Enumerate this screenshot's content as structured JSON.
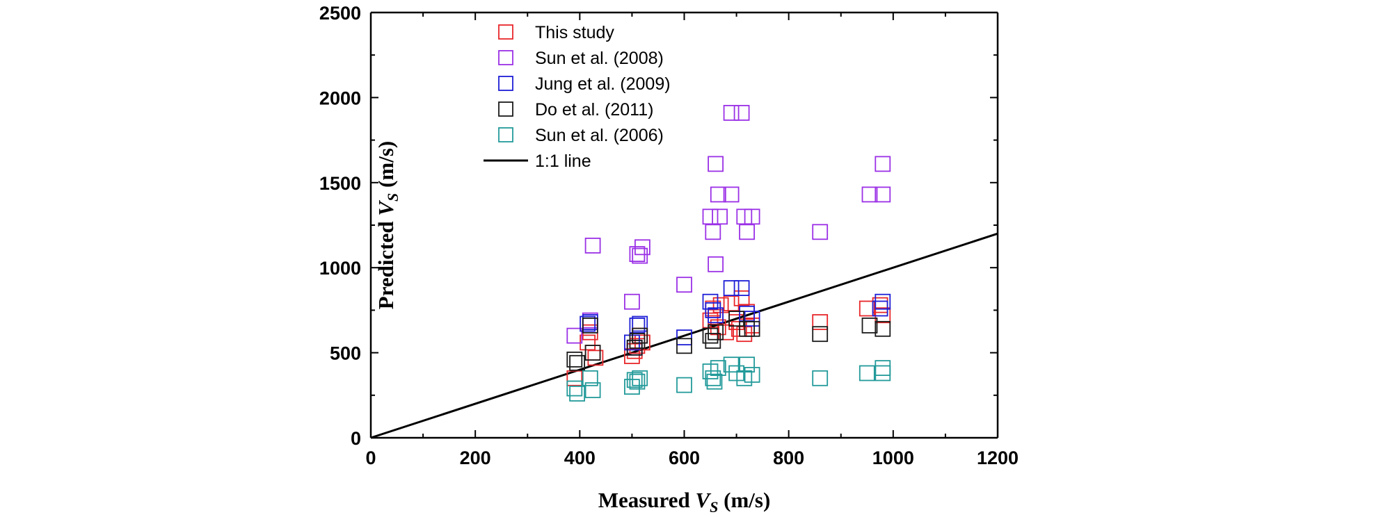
{
  "chart_data": {
    "type": "scatter",
    "xlabel": {
      "main": "Measured ",
      "var": "V",
      "sub": "S",
      "unit": " (m/s)"
    },
    "ylabel": {
      "main": "Predicted ",
      "var": "V",
      "sub": "S",
      "unit": " (m/s)"
    },
    "xlim": [
      0,
      1200
    ],
    "ylim": [
      0,
      2500
    ],
    "xticks": [
      "0",
      "200",
      "400",
      "600",
      "800",
      "1000",
      "1200"
    ],
    "yticks": [
      "0",
      "500",
      "1000",
      "1500",
      "2000",
      "2500"
    ],
    "grid": false,
    "legend_position": "top-left",
    "series": [
      {
        "name": "This study",
        "color": "#e8262a",
        "marker": "open-square",
        "points": [
          [
            390,
            350
          ],
          [
            415,
            560
          ],
          [
            420,
            620
          ],
          [
            425,
            500
          ],
          [
            430,
            470
          ],
          [
            500,
            480
          ],
          [
            505,
            510
          ],
          [
            510,
            540
          ],
          [
            515,
            600
          ],
          [
            520,
            560
          ],
          [
            650,
            690
          ],
          [
            655,
            760
          ],
          [
            660,
            710
          ],
          [
            665,
            650
          ],
          [
            670,
            780
          ],
          [
            680,
            620
          ],
          [
            690,
            790
          ],
          [
            700,
            680
          ],
          [
            705,
            640
          ],
          [
            710,
            820
          ],
          [
            715,
            610
          ],
          [
            720,
            740
          ],
          [
            730,
            660
          ],
          [
            860,
            680
          ],
          [
            950,
            760
          ],
          [
            975,
            780
          ],
          [
            980,
            720
          ]
        ]
      },
      {
        "name": "Sun et al. (2008)",
        "color": "#9b30e6",
        "marker": "open-square",
        "points": [
          [
            390,
            600
          ],
          [
            420,
            690
          ],
          [
            425,
            1130
          ],
          [
            500,
            800
          ],
          [
            510,
            1080
          ],
          [
            515,
            1070
          ],
          [
            520,
            1120
          ],
          [
            600,
            900
          ],
          [
            650,
            1300
          ],
          [
            655,
            1210
          ],
          [
            660,
            1020
          ],
          [
            660,
            1610
          ],
          [
            665,
            1430
          ],
          [
            668,
            1300
          ],
          [
            690,
            1430
          ],
          [
            690,
            1910
          ],
          [
            710,
            1910
          ],
          [
            715,
            1300
          ],
          [
            720,
            1210
          ],
          [
            730,
            1300
          ],
          [
            860,
            1210
          ],
          [
            955,
            1430
          ],
          [
            980,
            1430
          ],
          [
            980,
            1610
          ]
        ]
      },
      {
        "name": "Jung et al. (2009)",
        "color": "#1d1ed6",
        "marker": "open-square",
        "points": [
          [
            415,
            670
          ],
          [
            420,
            680
          ],
          [
            500,
            560
          ],
          [
            505,
            530
          ],
          [
            510,
            660
          ],
          [
            515,
            670
          ],
          [
            600,
            590
          ],
          [
            650,
            800
          ],
          [
            655,
            750
          ],
          [
            660,
            720
          ],
          [
            690,
            880
          ],
          [
            710,
            880
          ],
          [
            720,
            730
          ],
          [
            730,
            700
          ],
          [
            980,
            800
          ],
          [
            975,
            760
          ]
        ]
      },
      {
        "name": "Do et al. (2011)",
        "color": "#1a1a1a",
        "marker": "open-square",
        "points": [
          [
            390,
            460
          ],
          [
            395,
            440
          ],
          [
            420,
            660
          ],
          [
            425,
            500
          ],
          [
            505,
            530
          ],
          [
            510,
            570
          ],
          [
            515,
            600
          ],
          [
            600,
            540
          ],
          [
            650,
            600
          ],
          [
            655,
            570
          ],
          [
            660,
            620
          ],
          [
            700,
            700
          ],
          [
            720,
            640
          ],
          [
            730,
            640
          ],
          [
            860,
            610
          ],
          [
            955,
            660
          ],
          [
            980,
            640
          ]
        ]
      },
      {
        "name": "Sun et al. (2006)",
        "color": "#239a9a",
        "marker": "open-square",
        "points": [
          [
            390,
            290
          ],
          [
            395,
            260
          ],
          [
            420,
            350
          ],
          [
            425,
            280
          ],
          [
            500,
            300
          ],
          [
            505,
            340
          ],
          [
            510,
            330
          ],
          [
            515,
            350
          ],
          [
            600,
            310
          ],
          [
            650,
            390
          ],
          [
            655,
            350
          ],
          [
            658,
            330
          ],
          [
            665,
            410
          ],
          [
            690,
            430
          ],
          [
            700,
            380
          ],
          [
            715,
            350
          ],
          [
            720,
            430
          ],
          [
            730,
            370
          ],
          [
            860,
            350
          ],
          [
            950,
            380
          ],
          [
            980,
            380
          ],
          [
            980,
            410
          ]
        ]
      }
    ],
    "lines": [
      {
        "name": "1:1 line",
        "color": "#000000",
        "x": [
          0,
          1200
        ],
        "y": [
          0,
          1200
        ]
      }
    ]
  }
}
